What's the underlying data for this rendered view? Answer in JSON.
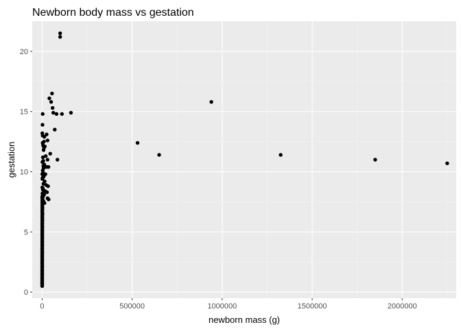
{
  "chart_data": {
    "type": "scatter",
    "title": "Newborn body mass vs gestation",
    "xlabel": "newborn mass (g)",
    "ylabel": "gestation",
    "xlim": [
      -55000,
      2300000
    ],
    "ylim": [
      -0.5,
      22.5
    ],
    "x_ticks": [
      0,
      500000,
      1000000,
      1500000,
      2000000
    ],
    "x_tick_labels": [
      "0",
      "500000",
      "1000000",
      "1500000",
      "2000000"
    ],
    "y_ticks": [
      0,
      5,
      10,
      15,
      20
    ],
    "y_tick_labels": [
      "0",
      "5",
      "10",
      "15",
      "20"
    ],
    "grid": true,
    "colors": {
      "panel_background": "#ebebeb",
      "grid_major": "#ffffff",
      "grid_minor": "#f4f4f4",
      "point": "#000000",
      "tick": "#333333"
    },
    "points": [
      [
        100000,
        21.5
      ],
      [
        100000,
        21.2
      ],
      [
        55000,
        16.5
      ],
      [
        40000,
        16.1
      ],
      [
        50000,
        15.8
      ],
      [
        58000,
        15.3
      ],
      [
        62000,
        14.9
      ],
      [
        80000,
        14.8
      ],
      [
        110000,
        14.8
      ],
      [
        160000,
        14.9
      ],
      [
        3000,
        14.8
      ],
      [
        2000,
        13.9
      ],
      [
        70000,
        13.5
      ],
      [
        25000,
        13.1
      ],
      [
        1000,
        13.2
      ],
      [
        3000,
        13.0
      ],
      [
        30000,
        12.6
      ],
      [
        10000,
        12.5
      ],
      [
        5000,
        12.2
      ],
      [
        15000,
        12.1
      ],
      [
        8000,
        11.8
      ],
      [
        45000,
        11.5
      ],
      [
        20000,
        11.3
      ],
      [
        4000,
        11.2
      ],
      [
        30000,
        11.0
      ],
      [
        85000,
        11.0
      ],
      [
        6000,
        10.9
      ],
      [
        12000,
        10.6
      ],
      [
        1500,
        10.8
      ],
      [
        25000,
        10.4
      ],
      [
        35000,
        10.4
      ],
      [
        8000,
        10.3
      ],
      [
        3000,
        10.1
      ],
      [
        18000,
        9.8
      ],
      [
        9000,
        9.6
      ],
      [
        2500,
        9.5
      ],
      [
        14000,
        9.2
      ],
      [
        7000,
        9.0
      ],
      [
        22000,
        8.9
      ],
      [
        33000,
        8.8
      ],
      [
        4500,
        8.6
      ],
      [
        16000,
        8.4
      ],
      [
        27000,
        8.3
      ],
      [
        11000,
        8.1
      ],
      [
        2000,
        8.0
      ],
      [
        30000,
        7.8
      ],
      [
        36000,
        7.7
      ],
      [
        6000,
        7.6
      ],
      [
        13000,
        7.4
      ],
      [
        500,
        9.8
      ],
      [
        1200,
        9.4
      ],
      [
        800,
        8.7
      ],
      [
        1500,
        8.2
      ],
      [
        300,
        7.9
      ],
      [
        2600,
        7.3
      ],
      [
        1800,
        7.0
      ],
      [
        900,
        6.8
      ],
      [
        2200,
        6.5
      ],
      [
        600,
        6.2
      ],
      [
        1400,
        6.0
      ],
      [
        400,
        5.7
      ],
      [
        1100,
        5.4
      ],
      [
        700,
        5.1
      ],
      [
        350,
        4.8
      ],
      [
        900,
        4.5
      ],
      [
        250,
        4.2
      ],
      [
        600,
        3.9
      ],
      [
        150,
        3.6
      ],
      [
        450,
        3.3
      ],
      [
        200,
        3.0
      ],
      [
        350,
        2.7
      ],
      [
        120,
        2.4
      ],
      [
        280,
        2.1
      ],
      [
        90,
        1.8
      ],
      [
        200,
        1.5
      ],
      [
        70,
        1.2
      ],
      [
        150,
        1.0
      ],
      [
        50,
        0.8
      ],
      [
        100,
        0.6
      ],
      [
        4000,
        7.9
      ],
      [
        3500,
        8.5
      ],
      [
        5000,
        9.9
      ],
      [
        6500,
        10.5
      ],
      [
        10000,
        12.0
      ],
      [
        12000,
        12.9
      ],
      [
        2800,
        12.4
      ],
      [
        530000,
        12.4
      ],
      [
        650000,
        11.4
      ],
      [
        940000,
        15.8
      ],
      [
        1325000,
        11.4
      ],
      [
        1850000,
        11.0
      ],
      [
        2250000,
        10.7
      ]
    ]
  }
}
